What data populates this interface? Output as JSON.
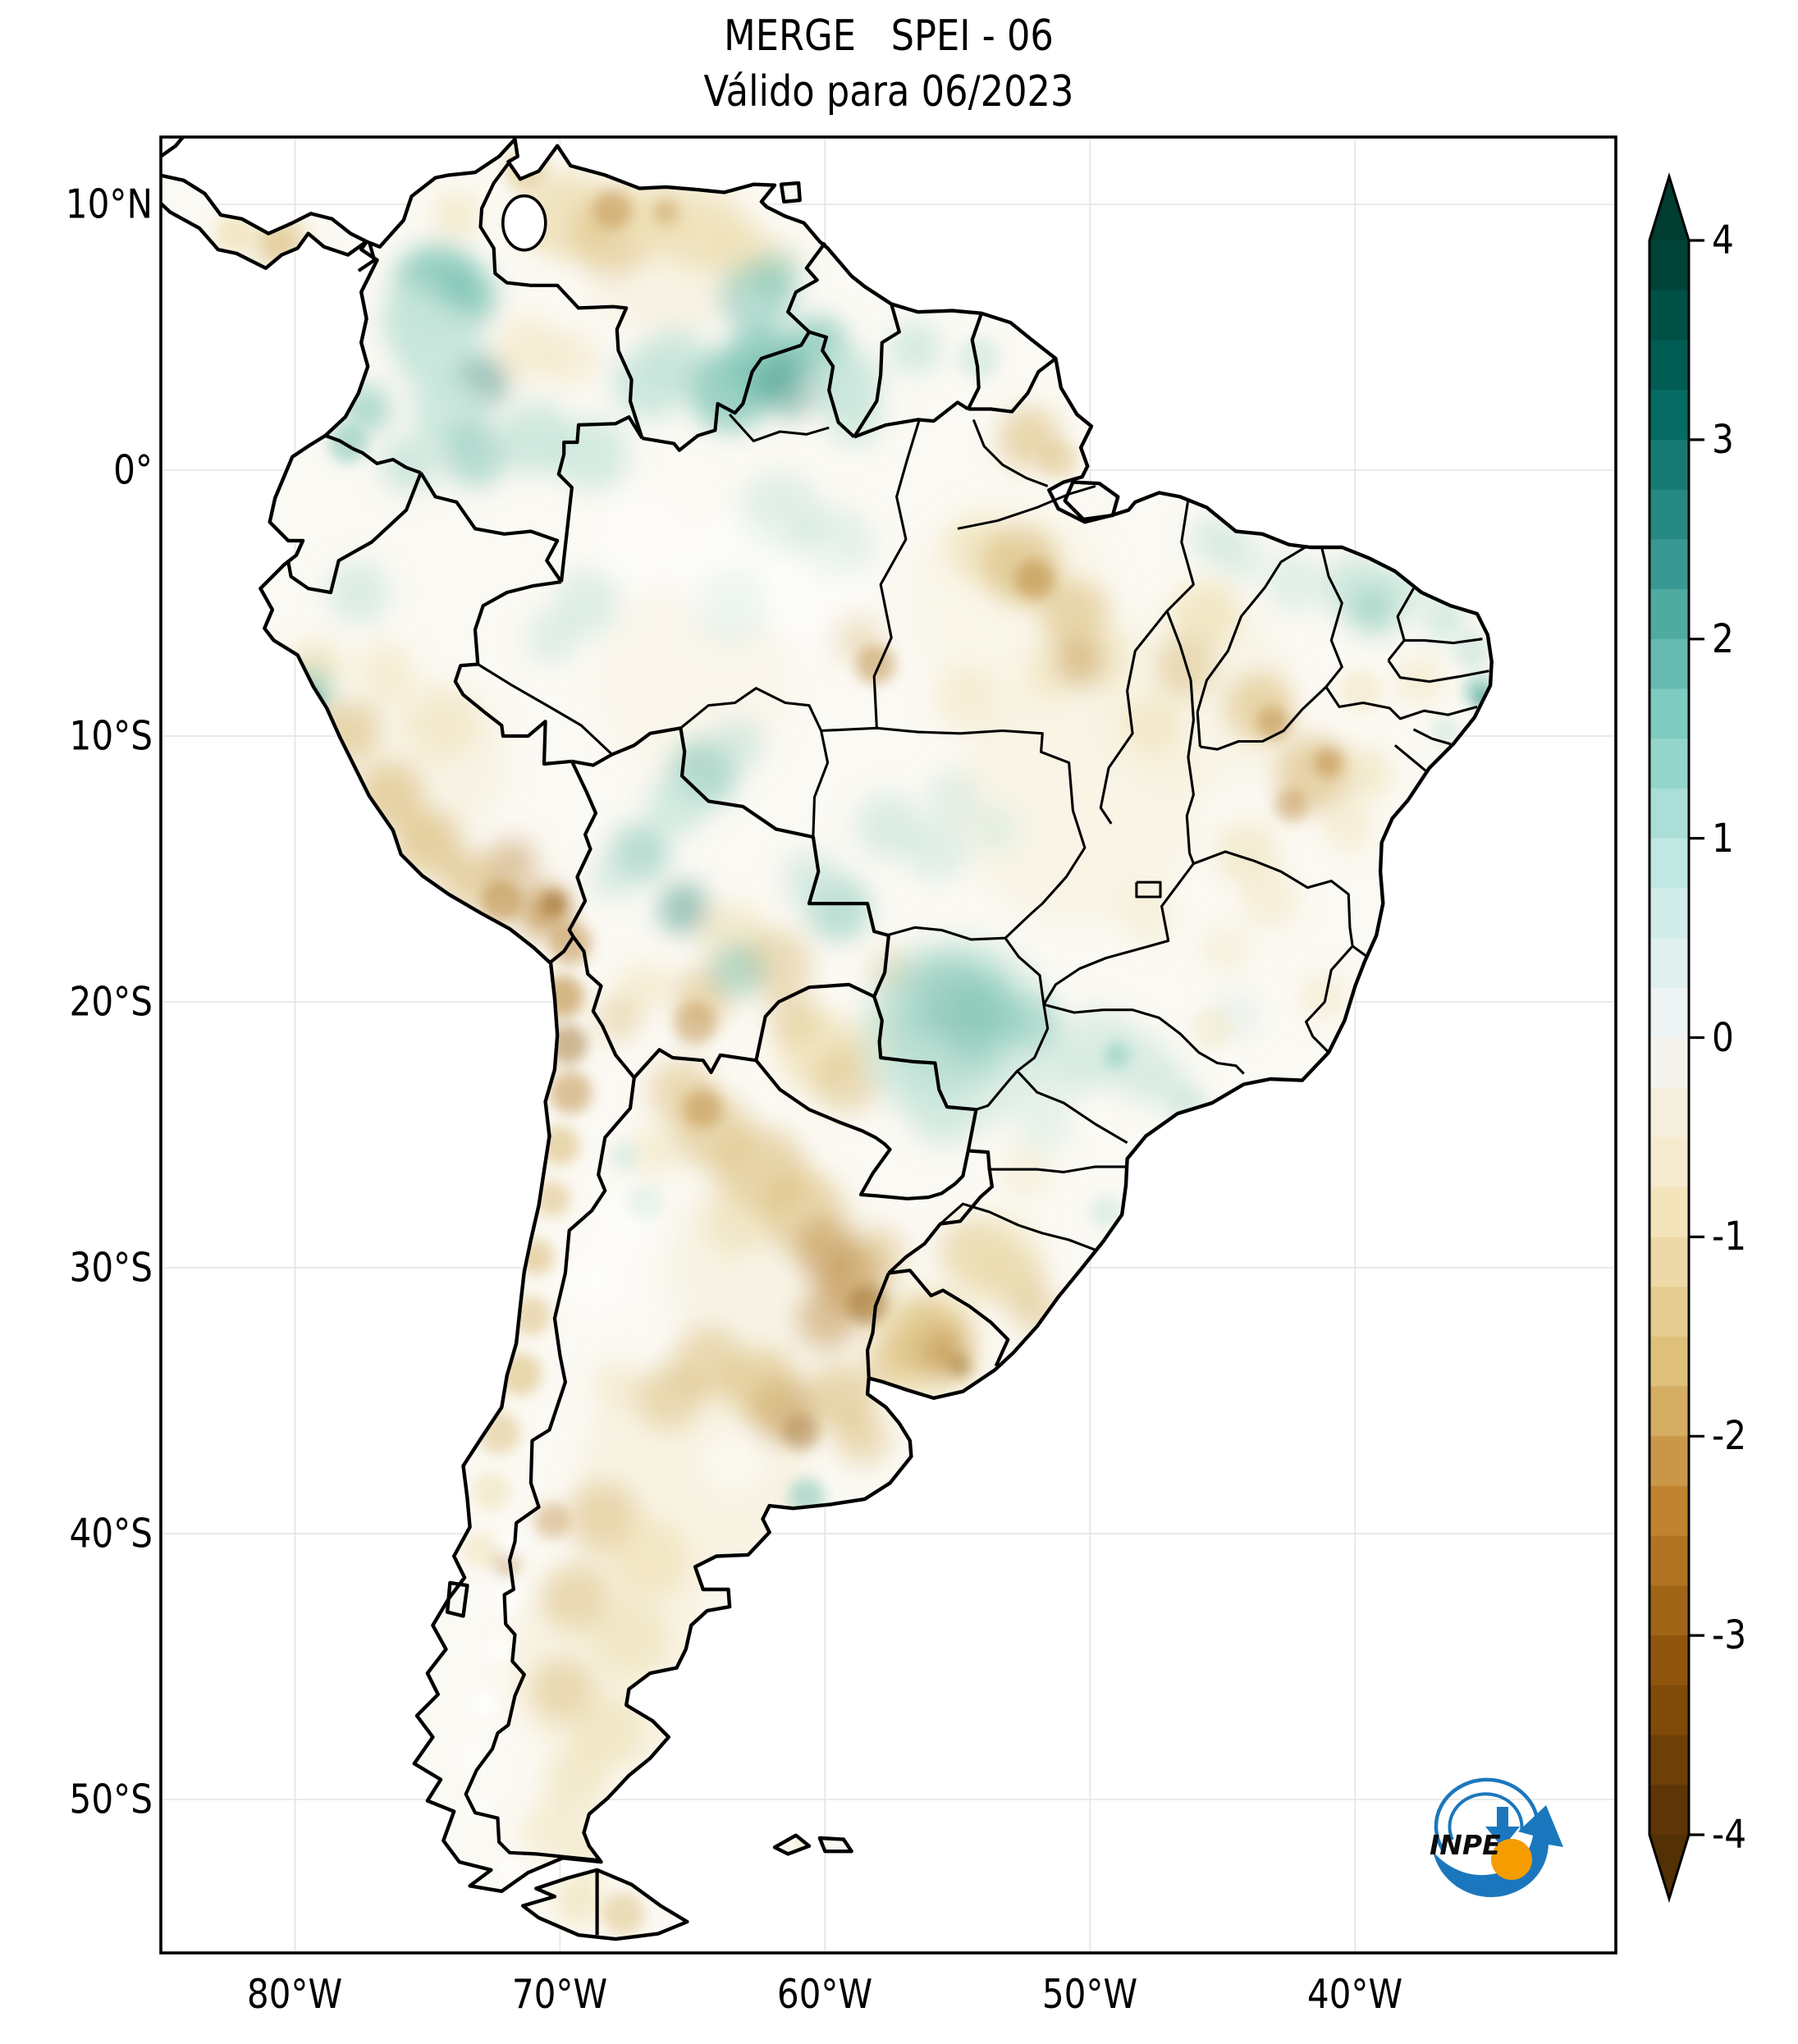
{
  "title": {
    "line1": "MERGE   SPEI - 06",
    "line2": "Válido para 06/2023"
  },
  "axes": {
    "lat_ticks": [
      {
        "label": "10°N",
        "lat": 10
      },
      {
        "label": "0°",
        "lat": 0
      },
      {
        "label": "10°S",
        "lat": -10
      },
      {
        "label": "20°S",
        "lat": -20
      },
      {
        "label": "30°S",
        "lat": -30
      },
      {
        "label": "40°S",
        "lat": -40
      },
      {
        "label": "50°S",
        "lat": -50
      }
    ],
    "lon_ticks": [
      {
        "label": "80°W",
        "lon": -80
      },
      {
        "label": "70°W",
        "lon": -70
      },
      {
        "label": "60°W",
        "lon": -60
      },
      {
        "label": "50°W",
        "lon": -50
      },
      {
        "label": "40°W",
        "lon": -40
      }
    ]
  },
  "colorbar": {
    "ticks": [
      {
        "label": "4",
        "value": 4
      },
      {
        "label": "3",
        "value": 3
      },
      {
        "label": "2",
        "value": 2
      },
      {
        "label": "1",
        "value": 1
      },
      {
        "label": "0",
        "value": 0
      },
      {
        "label": "-1",
        "value": -1
      },
      {
        "label": "-2",
        "value": -2
      },
      {
        "label": "-3",
        "value": -3
      },
      {
        "label": "-4",
        "value": -4
      }
    ],
    "min": -4,
    "max": 4,
    "step": 0.25,
    "extend": "both",
    "colormap": [
      {
        "v": 4.0,
        "c": "#003c30"
      },
      {
        "v": 3.2,
        "c": "#01665e"
      },
      {
        "v": 2.4,
        "c": "#35978f"
      },
      {
        "v": 1.6,
        "c": "#80cdc1"
      },
      {
        "v": 0.8,
        "c": "#c7eae5"
      },
      {
        "v": 0.0,
        "c": "#f5f5f5"
      },
      {
        "v": -0.8,
        "c": "#f6e8c3"
      },
      {
        "v": -1.6,
        "c": "#dfc27d"
      },
      {
        "v": -2.4,
        "c": "#bf812d"
      },
      {
        "v": -3.2,
        "c": "#8c510a"
      },
      {
        "v": -4.0,
        "c": "#543005"
      }
    ]
  },
  "map": {
    "land_color": "#fbf9f3",
    "ocean_color": "#ffffff",
    "border_color": "#000000",
    "grid_color": "#dedad4",
    "frame_color": "#000000",
    "palette": {
      "tl": "#c6e5da",
      "tm": "#7fc5b6",
      "td": "#2c8c7d",
      "tx": "#0b6052",
      "lt": "#efe1b6",
      "t": "#dcbf7f",
      "mb": "#bb8a3e",
      "db": "#95631b",
      "w": "#ffffff"
    }
  },
  "logo": {
    "name": "INPE",
    "text": "INPE",
    "blue": "#1b77bd",
    "orange": "#f59c00"
  }
}
